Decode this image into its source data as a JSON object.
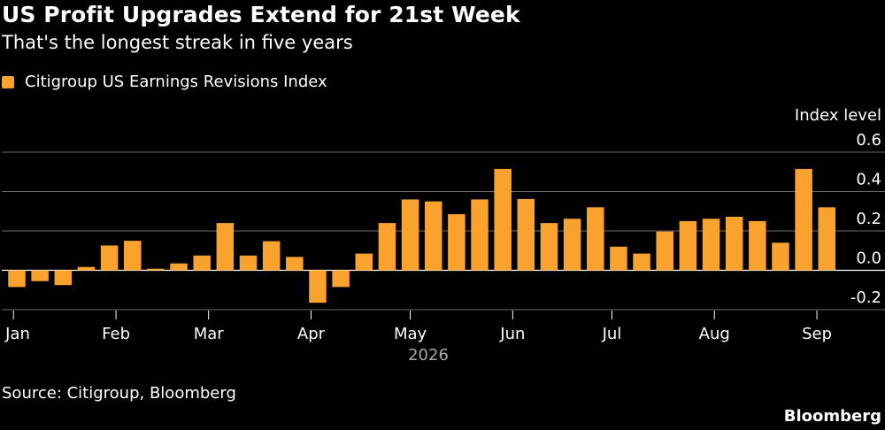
{
  "title": "US Profit Upgrades Extend for 21st Week",
  "subtitle": "That's the longest streak in five years",
  "source": "Source: Citigroup, Bloomberg",
  "brand": "Bloomberg",
  "colors": {
    "bar": "#F9A22D",
    "background": "#000000",
    "grid": "#6b6b6b",
    "text": "#ffffff"
  },
  "chart_data": {
    "type": "bar",
    "ylabel": "Index level",
    "ylim": [
      -0.2,
      0.6
    ],
    "yticks": [
      -0.2,
      0.0,
      0.2,
      0.4,
      0.6
    ],
    "ytick_labels": [
      "-0.2",
      "0.0",
      "0.2",
      "0.4",
      "0.6"
    ],
    "grid": true,
    "legend_position": "top-left",
    "x_start": "2026-01-02",
    "x_end": "2026-09-05",
    "x_month_ticks": [
      {
        "date": "2026-01-01",
        "label": "Jan"
      },
      {
        "date": "2026-02-01",
        "label": "Feb"
      },
      {
        "date": "2026-03-01",
        "label": "Mar"
      },
      {
        "date": "2026-04-01",
        "label": "Apr"
      },
      {
        "date": "2026-05-01",
        "label": "May"
      },
      {
        "date": "2026-06-01",
        "label": "Jun"
      },
      {
        "date": "2026-07-01",
        "label": "Jul"
      },
      {
        "date": "2026-08-01",
        "label": "Aug"
      },
      {
        "date": "2026-09-01",
        "label": "Sep"
      }
    ],
    "year_label": "2026",
    "series": [
      {
        "name": "Citigroup US Earnings Revisions Index",
        "x": [
          "2026-01-02",
          "2026-01-09",
          "2026-01-16",
          "2026-01-23",
          "2026-01-30",
          "2026-02-06",
          "2026-02-13",
          "2026-02-20",
          "2026-02-27",
          "2026-03-06",
          "2026-03-13",
          "2026-03-20",
          "2026-03-27",
          "2026-04-03",
          "2026-04-10",
          "2026-04-17",
          "2026-04-24",
          "2026-05-01",
          "2026-05-08",
          "2026-05-15",
          "2026-05-22",
          "2026-05-29",
          "2026-06-05",
          "2026-06-12",
          "2026-06-19",
          "2026-06-26",
          "2026-07-03",
          "2026-07-10",
          "2026-07-17",
          "2026-07-24",
          "2026-07-31",
          "2026-08-07",
          "2026-08-14",
          "2026-08-21",
          "2026-08-28",
          "2026-09-04"
        ],
        "values": [
          -0.085,
          -0.055,
          -0.075,
          0.017,
          0.126,
          0.15,
          0.008,
          0.035,
          0.075,
          0.24,
          0.075,
          0.148,
          0.068,
          -0.165,
          -0.085,
          0.085,
          0.24,
          0.36,
          0.35,
          0.285,
          0.36,
          0.515,
          0.362,
          0.24,
          0.262,
          0.32,
          0.12,
          0.085,
          0.197,
          0.25,
          0.262,
          0.272,
          0.25,
          0.14,
          0.515,
          0.32
        ]
      }
    ]
  }
}
